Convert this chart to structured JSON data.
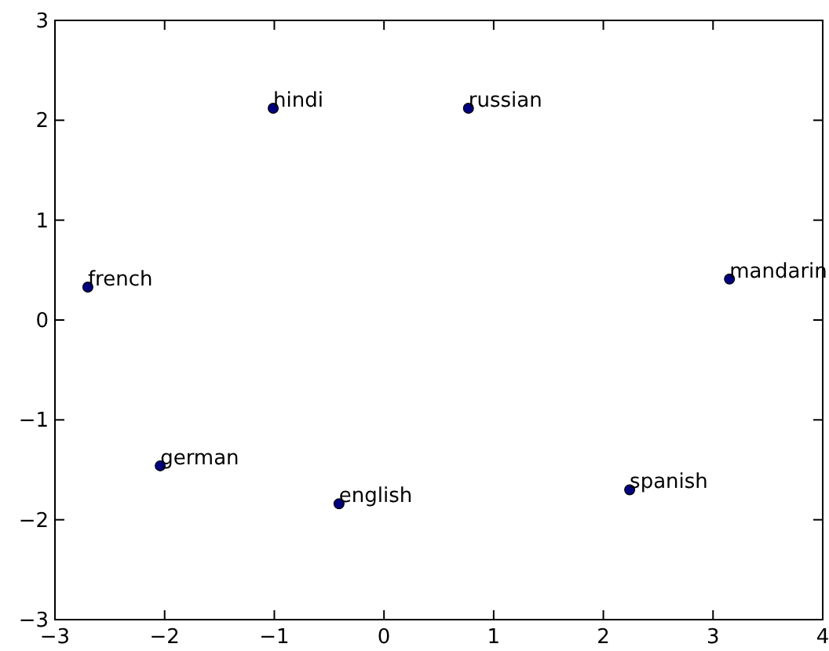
{
  "chart_data": {
    "type": "scatter",
    "x": [
      -1.01,
      0.77,
      -2.7,
      3.15,
      -2.04,
      -0.41,
      2.24
    ],
    "series": [
      {
        "color": "#00007f",
        "values": [
          2.12,
          2.12,
          0.33,
          0.41,
          -1.46,
          -1.84,
          -1.7
        ]
      }
    ],
    "marker": "circle",
    "grid": false,
    "xlim": [
      -3,
      4
    ],
    "xticks": [
      {
        "value": -3,
        "label": "−3"
      },
      {
        "value": -2,
        "label": "−2"
      },
      {
        "value": -1,
        "label": "−1"
      },
      0,
      1,
      2,
      3,
      4
    ],
    "ylim": [
      -3,
      3
    ],
    "yticks": [
      {
        "value": -3,
        "label": "−3"
      },
      {
        "value": -2,
        "label": "−2"
      },
      {
        "value": -1,
        "label": "−1"
      },
      0,
      1,
      2,
      3
    ],
    "annotations": [
      {
        "text": "hindi",
        "x": -1.01,
        "y": 2.12
      },
      {
        "text": "russian",
        "x": 0.77,
        "y": 2.12
      },
      {
        "text": "french",
        "x": -2.7,
        "y": 0.33
      },
      {
        "text": "mandarin",
        "x": 3.15,
        "y": 0.41
      },
      {
        "text": "german",
        "x": -2.04,
        "y": -1.46
      },
      {
        "text": "english",
        "x": -0.41,
        "y": -1.84
      },
      {
        "text": "spanish",
        "x": 2.24,
        "y": -1.7
      }
    ]
  }
}
